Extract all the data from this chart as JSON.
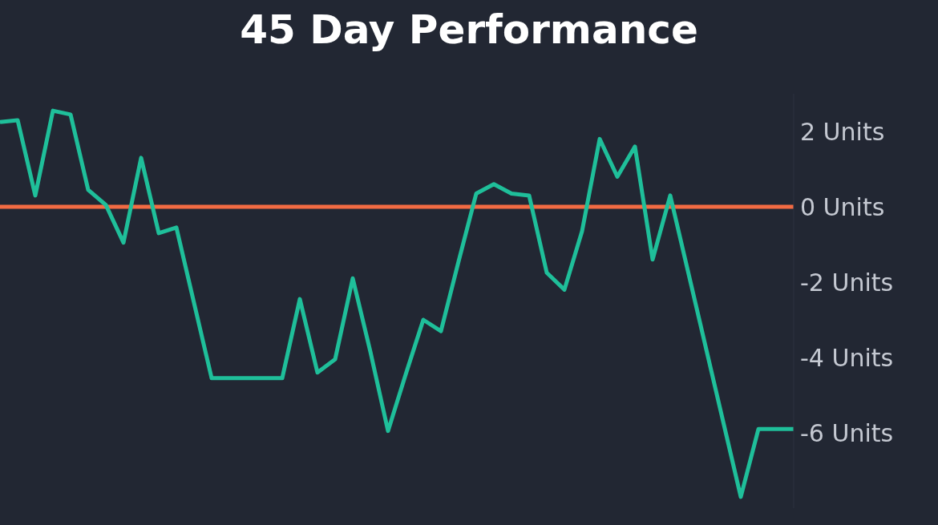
{
  "chart_data": {
    "type": "line",
    "title": "45 Day Performance",
    "categories": [
      null,
      null,
      null,
      null,
      null,
      null,
      null,
      null,
      null,
      null,
      null,
      null,
      null,
      null,
      null,
      null,
      null,
      null,
      null,
      null,
      null,
      null,
      null,
      null,
      null,
      null,
      null,
      null,
      null,
      null,
      null,
      null,
      null,
      null,
      null,
      null,
      null,
      null,
      null,
      null,
      null,
      null,
      null,
      null,
      null,
      null
    ],
    "series": [
      {
        "color": "#1fbf9a",
        "values": [
          2.25,
          2.3,
          0.3,
          2.55,
          2.45,
          0.45,
          0.05,
          -0.95,
          1.3,
          -0.7,
          -0.55,
          -2.55,
          -4.55,
          -4.55,
          -4.55,
          -4.55,
          -4.55,
          -2.45,
          -4.4,
          -4.05,
          -1.9,
          -3.85,
          -5.95,
          -4.45,
          -3.0,
          -3.3,
          -1.45,
          0.35,
          0.6,
          0.35,
          0.3,
          -1.75,
          -2.2,
          -0.65,
          1.8,
          0.8,
          1.6,
          -1.4,
          0.3,
          -1.7,
          -3.7,
          -5.7,
          -7.7,
          -5.9,
          -5.9,
          -5.9
        ]
      }
    ],
    "ylim": [
      -8,
      3
    ],
    "yticks": [
      {
        "value": -6,
        "label": "-6 Units"
      },
      {
        "value": -4,
        "label": "-4 Units"
      },
      {
        "value": -2,
        "label": "-2 Units"
      },
      {
        "value": 0,
        "label": "0 Units"
      },
      {
        "value": 2,
        "label": "2 Units"
      }
    ],
    "ref_lines": [
      {
        "axis": "y",
        "value": 0,
        "color": "#f26b43"
      }
    ],
    "tick_labels": "y",
    "grid": false,
    "legend": false,
    "marker": "none",
    "line_style": "solid"
  }
}
